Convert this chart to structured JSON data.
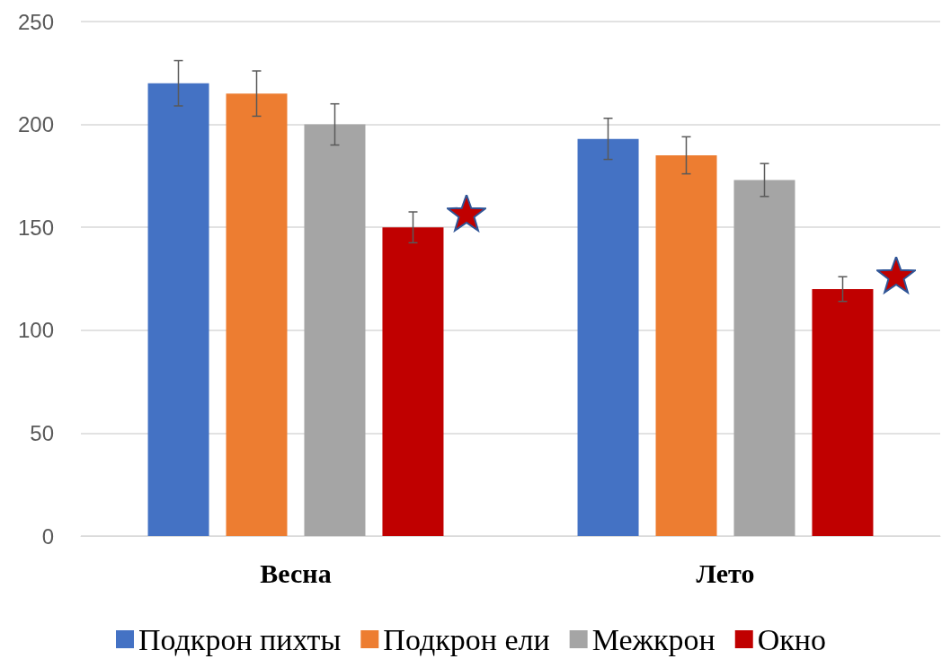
{
  "chart_data": {
    "type": "bar",
    "categories": [
      "Весна",
      "Лето"
    ],
    "series": [
      {
        "name": "Подкрон пихты",
        "color": "#4472c4",
        "values": [
          220,
          193
        ],
        "errors": [
          11,
          10
        ]
      },
      {
        "name": "Подкрон ели",
        "color": "#ed7d31",
        "values": [
          215,
          185
        ],
        "errors": [
          11,
          9
        ]
      },
      {
        "name": "Межкрон",
        "color": "#a5a5a5",
        "values": [
          200,
          173
        ],
        "errors": [
          10,
          8
        ]
      },
      {
        "name": "Окно",
        "color": "#c00000",
        "values": [
          150,
          120
        ],
        "errors": [
          7.5,
          6
        ]
      }
    ],
    "ylim": [
      0,
      250
    ],
    "yticks": [
      0,
      50,
      100,
      150,
      200,
      250
    ],
    "grid": "y",
    "legend": "bottom"
  }
}
